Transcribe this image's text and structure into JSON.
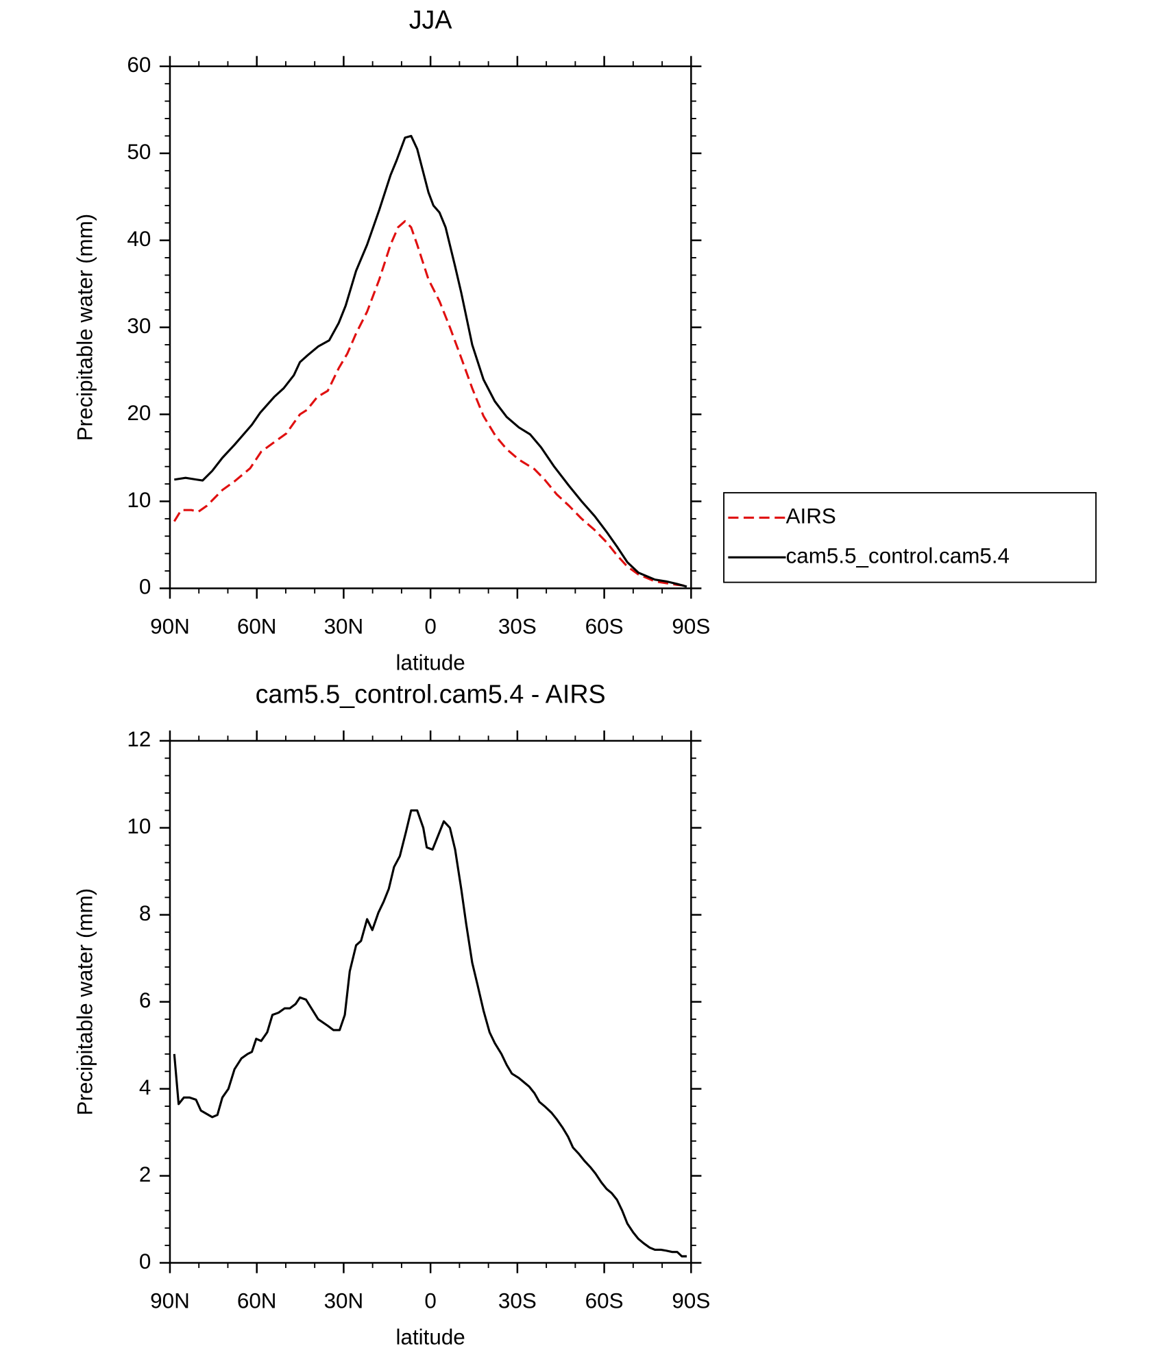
{
  "chart_data": [
    {
      "type": "line",
      "title": "JJA",
      "xlabel": "latitude",
      "ylabel": "Precipitable water (mm)",
      "xlim": [
        90,
        -90
      ],
      "xticks": [
        {
          "value": 90,
          "label": "90N"
        },
        {
          "value": 60,
          "label": "60N"
        },
        {
          "value": 30,
          "label": "30N"
        },
        0,
        {
          "value": -30,
          "label": "30S"
        },
        {
          "value": -60,
          "label": "60S"
        },
        {
          "value": -90,
          "label": "90S"
        }
      ],
      "ylim": [
        0,
        60
      ],
      "yticks": [
        0,
        10,
        20,
        30,
        40,
        50,
        60
      ],
      "legend": "right",
      "series": [
        {
          "name": "AIRS",
          "color": "#e01010",
          "line_style": "dashed",
          "x": [
            88.5,
            86.1,
            82.6,
            80.2,
            77.2,
            71.9,
            67.7,
            62.3,
            58.5,
            54,
            49.8,
            45.1,
            42.7,
            39.1,
            35.5,
            31.7,
            28.7,
            25.7,
            21.9,
            17.7,
            13.8,
            11.2,
            8.8,
            6.7,
            4.6,
            0.7,
            -3.1,
            -6.7,
            -10.6,
            -14.4,
            -18.3,
            -22.5,
            -26.3,
            -30.5,
            -35.9,
            -39.4,
            -43.6,
            -47.8,
            -52.2,
            -56.7,
            -60.8,
            -64.4,
            -68,
            -71.8,
            -77.5,
            -85.2,
            -88.5
          ],
          "values": [
            7.7,
            9,
            9,
            8.8,
            9.5,
            11.3,
            12.3,
            13.8,
            15.7,
            16.8,
            17.8,
            20,
            20.5,
            22,
            22.7,
            25.3,
            27,
            29.3,
            31.8,
            35.5,
            39.5,
            41.5,
            42.2,
            41.5,
            39.5,
            35.5,
            33,
            30,
            26.5,
            23,
            19.8,
            17.5,
            16,
            14.8,
            13.7,
            12.5,
            10.8,
            9.5,
            8,
            6.7,
            5.3,
            3.8,
            2.5,
            1.6,
            0.8,
            0.4,
            0.3
          ]
        },
        {
          "name": "cam5.5_control.cam5.4",
          "color": "#000000",
          "line_style": "solid",
          "x": [
            88.5,
            84.6,
            80.8,
            78.7,
            75.4,
            71.9,
            67.7,
            61.7,
            58.8,
            54,
            50.7,
            47.2,
            45.1,
            42.4,
            38.8,
            35,
            31.7,
            29.3,
            25.7,
            21.9,
            17.7,
            13.8,
            11.7,
            8.8,
            6.7,
            4.6,
            0.7,
            -1,
            -3.1,
            -5.2,
            -8.5,
            -10.6,
            -14.4,
            -18.3,
            -22.2,
            -26.3,
            -30.5,
            -34.4,
            -38.2,
            -42.7,
            -47.8,
            -52.2,
            -56.7,
            -60.8,
            -64.4,
            -68,
            -71.8,
            -77.5,
            -81.4,
            -85.2,
            -88.5
          ],
          "values": [
            12.5,
            12.7,
            12.5,
            12.4,
            13.5,
            15,
            16.5,
            18.8,
            20.2,
            22,
            23,
            24.5,
            26,
            26.8,
            27.8,
            28.5,
            30.5,
            32.5,
            36.5,
            39.5,
            43.5,
            47.5,
            49.2,
            51.8,
            52,
            50.5,
            45.5,
            44,
            43.2,
            41.5,
            37,
            34,
            28,
            24,
            21.5,
            19.7,
            18.5,
            17.7,
            16.2,
            14,
            11.8,
            10,
            8.3,
            6.5,
            4.8,
            3,
            1.8,
            1,
            0.8,
            0.5,
            0.2
          ]
        }
      ]
    },
    {
      "type": "line",
      "title": "cam5.5_control.cam5.4 - AIRS",
      "xlabel": "latitude",
      "ylabel": "Precipitable water (mm)",
      "xlim": [
        90,
        -90
      ],
      "xticks": [
        {
          "value": 90,
          "label": "90N"
        },
        {
          "value": 60,
          "label": "60N"
        },
        {
          "value": 30,
          "label": "30N"
        },
        0,
        {
          "value": -30,
          "label": "30S"
        },
        {
          "value": -60,
          "label": "60S"
        },
        {
          "value": -90,
          "label": "90S"
        }
      ],
      "ylim": [
        0,
        12
      ],
      "yticks": [
        0,
        2,
        4,
        6,
        8,
        10,
        12
      ],
      "series": [
        {
          "color": "#000000",
          "line_style": "solid",
          "x": [
            88.5,
            87,
            85.2,
            83.2,
            81,
            79.3,
            75.4,
            73.6,
            71.9,
            69.8,
            67.7,
            65.3,
            63.2,
            61.7,
            60.2,
            58.5,
            56.4,
            54.6,
            52.5,
            50.4,
            48.6,
            46.6,
            45.1,
            43,
            38.8,
            35.5,
            33.5,
            31.4,
            29.6,
            27.9,
            25.7,
            24,
            21.9,
            20.1,
            18,
            16.2,
            14.4,
            12.6,
            10.6,
            8.5,
            6.7,
            4.6,
            2.5,
            1.3,
            -0.7,
            -2.5,
            -4.6,
            -6.7,
            -8.5,
            -10.6,
            -12.3,
            -14.4,
            -16.2,
            -18.3,
            -20.4,
            -22.2,
            -24.5,
            -26.3,
            -28.1,
            -30.5,
            -32.3,
            -34.1,
            -35.9,
            -37.6,
            -39.4,
            -41.8,
            -43.6,
            -45.7,
            -47.5,
            -49.2,
            -51.3,
            -53.1,
            -55.2,
            -57,
            -59,
            -60.8,
            -62.6,
            -64.4,
            -66.2,
            -68,
            -70,
            -71.8,
            -73.6,
            -75.7,
            -77.5,
            -79.6,
            -81.4,
            -83.5,
            -85.2,
            -86.8,
            -88.5
          ],
          "values": [
            4.8,
            3.65,
            3.8,
            3.8,
            3.75,
            3.5,
            3.35,
            3.4,
            3.8,
            4,
            4.45,
            4.7,
            4.8,
            4.85,
            5.15,
            5.1,
            5.3,
            5.7,
            5.75,
            5.85,
            5.85,
            5.95,
            6.1,
            6.05,
            5.6,
            5.45,
            5.35,
            5.35,
            5.7,
            6.7,
            7.3,
            7.4,
            7.9,
            7.65,
            8.05,
            8.3,
            8.6,
            9.1,
            9.35,
            9.9,
            10.4,
            10.4,
            10,
            9.55,
            9.5,
            9.8,
            10.15,
            10,
            9.5,
            8.6,
            7.8,
            6.9,
            6.4,
            5.8,
            5.3,
            5.05,
            4.8,
            4.55,
            4.35,
            4.25,
            4.15,
            4.05,
            3.9,
            3.7,
            3.6,
            3.45,
            3.3,
            3.1,
            2.9,
            2.65,
            2.5,
            2.35,
            2.2,
            2.05,
            1.85,
            1.7,
            1.6,
            1.45,
            1.2,
            0.9,
            0.7,
            0.55,
            0.45,
            0.35,
            0.3,
            0.3,
            0.28,
            0.25,
            0.25,
            0.15,
            0.15
          ]
        }
      ]
    }
  ]
}
